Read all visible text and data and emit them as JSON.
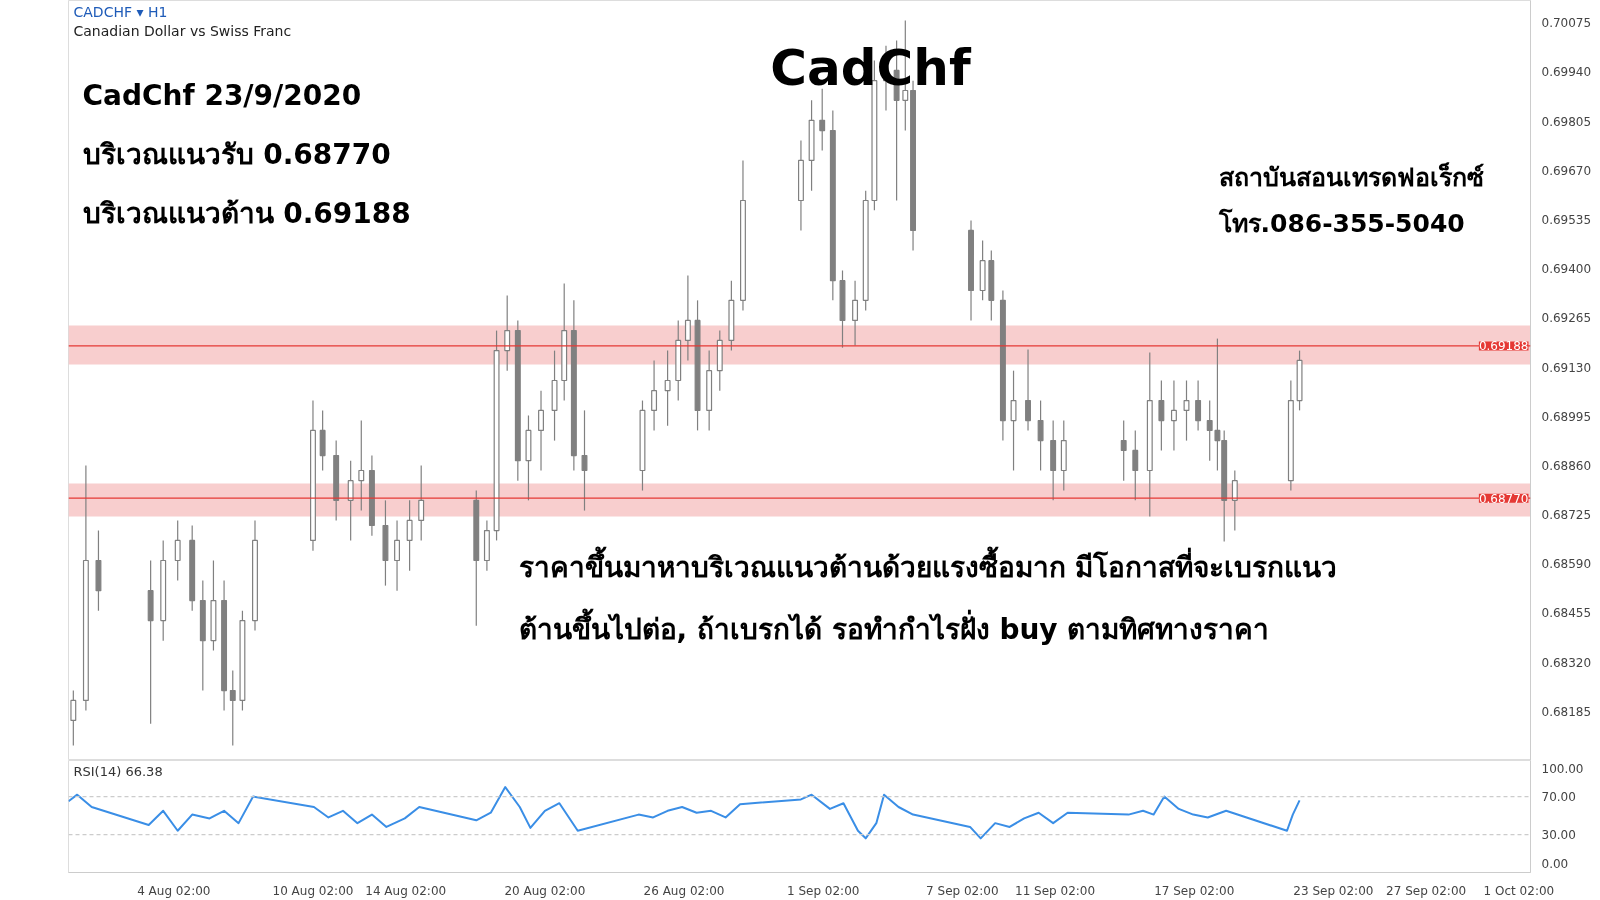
{
  "chart_data": [
    {
      "type": "candlestick",
      "title": "CadChf",
      "color": "#808080",
      "tick_labels": "y",
      "annotations": [
        "CADCHF ▾ H1",
        "Canadian Dollar vs Swiss Franc",
        "CadChf 23/9/2020",
        "บริเวณแนวรับ 0.68770",
        "บริเวณแนวต้าน 0.69188",
        "สถาบันสอนเทรดฟอเร็กซ์",
        "โทร.086-355-5040",
        "ราคาขึ้นมาหาบริเวณแนวต้านด้วยแรงซื้อมาก มีโอกาสที่จะเบรกแนว",
        "ต้านขึ้นไปต่อ, ถ้าเบรกได้ รอทำกำไรฝั่ง buy ตามทิศทางราคา"
      ],
      "x": [
        "2020-07-30T18:00",
        "2020-07-31T07:00",
        "2020-07-31T20:00",
        "2020-08-03T02:00",
        "2020-08-03T15:00",
        "2020-08-04T06:00",
        "2020-08-04T21:00",
        "2020-08-05T08:00",
        "2020-08-05T19:00",
        "2020-08-06T06:00",
        "2020-08-06T15:00",
        "2020-08-07T01:00",
        "2020-08-07T14:00",
        "2020-08-10T02:00",
        "2020-08-10T12:00",
        "2020-08-11T02:00",
        "2020-08-11T17:00",
        "2020-08-12T04:00",
        "2020-08-12T15:00",
        "2020-08-13T05:00",
        "2020-08-13T17:00",
        "2020-08-14T06:00",
        "2020-08-14T18:00",
        "2020-08-17T03:00",
        "2020-08-17T14:00",
        "2020-08-18T00:00",
        "2020-08-18T11:00",
        "2020-08-18T22:00",
        "2020-08-19T09:00",
        "2020-08-19T22:00",
        "2020-08-20T12:00",
        "2020-08-20T22:00",
        "2020-08-21T08:00",
        "2020-08-21T19:00",
        "2020-08-24T07:00",
        "2020-08-24T19:00",
        "2020-08-25T09:00",
        "2020-08-25T20:00",
        "2020-08-26T06:00",
        "2020-08-26T16:00",
        "2020-08-27T04:00",
        "2020-08-27T15:00",
        "2020-08-28T03:00",
        "2020-08-28T15:00",
        "2020-08-31T03:00",
        "2020-08-31T14:00",
        "2020-09-01T01:00",
        "2020-09-01T12:00",
        "2020-09-01T22:00",
        "2020-09-02T11:00",
        "2020-09-02T22:00",
        "2020-09-03T07:00",
        "2020-09-03T19:00",
        "2020-09-04T06:00",
        "2020-09-04T15:00",
        "2020-09-04T23:00",
        "2020-09-07T11:00",
        "2020-09-07T23:00",
        "2020-09-08T08:00",
        "2020-09-08T20:00",
        "2020-09-09T07:00",
        "2020-09-09T22:00",
        "2020-09-10T11:00",
        "2020-09-11T00:00",
        "2020-09-11T11:00",
        "2020-09-14T01:00",
        "2020-09-14T13:00",
        "2020-09-15T04:00",
        "2020-09-15T16:00",
        "2020-09-16T05:00",
        "2020-09-16T18:00",
        "2020-09-17T06:00",
        "2020-09-17T18:00",
        "2020-09-18T02:00",
        "2020-09-18T09:00",
        "2020-09-18T20:00",
        "2020-09-21T06:00",
        "2020-09-21T15:00"
      ],
      "ohlc": [
        [
          0.6816,
          0.68242,
          0.68091,
          0.68215
        ],
        [
          0.68215,
          0.6886,
          0.68187,
          0.68599
        ],
        [
          0.68599,
          0.68681,
          0.68461,
          0.68516
        ],
        [
          0.68516,
          0.68599,
          0.68151,
          0.68434
        ],
        [
          0.68434,
          0.68654,
          0.68379,
          0.68599
        ],
        [
          0.68599,
          0.68709,
          0.68544,
          0.68654
        ],
        [
          0.68654,
          0.68695,
          0.68461,
          0.68489
        ],
        [
          0.68489,
          0.68544,
          0.68242,
          0.68379
        ],
        [
          0.68379,
          0.68599,
          0.68352,
          0.68489
        ],
        [
          0.68489,
          0.68544,
          0.68187,
          0.68242
        ],
        [
          0.68242,
          0.68297,
          0.68091,
          0.68215
        ],
        [
          0.68215,
          0.68461,
          0.68187,
          0.68434
        ],
        [
          0.68434,
          0.68709,
          0.68407,
          0.68654
        ],
        [
          0.68654,
          0.69038,
          0.68626,
          0.68956
        ],
        [
          0.68956,
          0.69011,
          0.68846,
          0.68887
        ],
        [
          0.68887,
          0.68928,
          0.68709,
          0.68764
        ],
        [
          0.68764,
          0.68873,
          0.68654,
          0.68818
        ],
        [
          0.68818,
          0.68983,
          0.68736,
          0.68846
        ],
        [
          0.68846,
          0.68887,
          0.68667,
          0.68695
        ],
        [
          0.68695,
          0.68764,
          0.6853,
          0.68599
        ],
        [
          0.68599,
          0.68709,
          0.68516,
          0.68654
        ],
        [
          0.68654,
          0.68764,
          0.68571,
          0.68709
        ],
        [
          0.68709,
          0.6886,
          0.68654,
          0.68764
        ],
        [
          0.68764,
          0.68791,
          0.6842,
          0.68599
        ],
        [
          0.68599,
          0.68709,
          0.68571,
          0.68681
        ],
        [
          0.68681,
          0.6923,
          0.68654,
          0.69175
        ],
        [
          0.69175,
          0.69326,
          0.6912,
          0.6923
        ],
        [
          0.6923,
          0.69258,
          0.68818,
          0.68873
        ],
        [
          0.68873,
          0.68997,
          0.68764,
          0.68956
        ],
        [
          0.68956,
          0.69065,
          0.68846,
          0.69011
        ],
        [
          0.69011,
          0.69175,
          0.68928,
          0.69093
        ],
        [
          0.69093,
          0.69359,
          0.69038,
          0.6923
        ],
        [
          0.6923,
          0.69313,
          0.68846,
          0.68887
        ],
        [
          0.68887,
          0.69011,
          0.68736,
          0.68846
        ],
        [
          0.68846,
          0.69038,
          0.68791,
          0.69011
        ],
        [
          0.69011,
          0.69148,
          0.68956,
          0.69065
        ],
        [
          0.69065,
          0.69175,
          0.68969,
          0.69093
        ],
        [
          0.69093,
          0.69258,
          0.69038,
          0.69203
        ],
        [
          0.69203,
          0.69381,
          0.69148,
          0.69258
        ],
        [
          0.69258,
          0.69313,
          0.68956,
          0.69011
        ],
        [
          0.69011,
          0.69175,
          0.68956,
          0.6912
        ],
        [
          0.6912,
          0.6923,
          0.69065,
          0.69203
        ],
        [
          0.69203,
          0.69367,
          0.69175,
          0.69313
        ],
        [
          0.69313,
          0.69697,
          0.69285,
          0.69587
        ],
        [
          0.69587,
          0.69752,
          0.69505,
          0.69697
        ],
        [
          0.69697,
          0.69862,
          0.69614,
          0.69807
        ],
        [
          0.69807,
          0.69894,
          0.69724,
          0.69779
        ],
        [
          0.69779,
          0.69834,
          0.69313,
          0.69367
        ],
        [
          0.69367,
          0.69395,
          0.69183,
          0.69258
        ],
        [
          0.69258,
          0.69367,
          0.69189,
          0.69313
        ],
        [
          0.69313,
          0.69614,
          0.69285,
          0.69587
        ],
        [
          0.69587,
          0.69971,
          0.6956,
          0.69916
        ],
        [
          0.69916,
          0.70012,
          0.69834,
          0.69944
        ],
        [
          0.69944,
          0.70026,
          0.69587,
          0.69862
        ],
        [
          0.69862,
          0.70081,
          0.69779,
          0.69889
        ],
        [
          0.69889,
          0.69916,
          0.6945,
          0.69505
        ],
        [
          0.69505,
          0.69532,
          0.69258,
          0.6934
        ],
        [
          0.6934,
          0.69477,
          0.69313,
          0.69422
        ],
        [
          0.69422,
          0.6945,
          0.69258,
          0.69313
        ],
        [
          0.69313,
          0.6934,
          0.68928,
          0.68983
        ],
        [
          0.68983,
          0.6912,
          0.68846,
          0.69038
        ],
        [
          0.69038,
          0.69178,
          0.68956,
          0.68983
        ],
        [
          0.68983,
          0.69038,
          0.68846,
          0.68928
        ],
        [
          0.68928,
          0.68983,
          0.68764,
          0.68846
        ],
        [
          0.68846,
          0.68983,
          0.68791,
          0.68928
        ],
        [
          0.68928,
          0.68983,
          0.68818,
          0.68901
        ],
        [
          0.68901,
          0.68956,
          0.68764,
          0.68846
        ],
        [
          0.68846,
          0.6917,
          0.6872,
          0.69038
        ],
        [
          0.69038,
          0.69093,
          0.68901,
          0.68983
        ],
        [
          0.68983,
          0.69093,
          0.68901,
          0.69011
        ],
        [
          0.69011,
          0.69093,
          0.68928,
          0.69038
        ],
        [
          0.69038,
          0.69093,
          0.68956,
          0.68983
        ],
        [
          0.68983,
          0.69038,
          0.68873,
          0.68956
        ],
        [
          0.68956,
          0.69208,
          0.68846,
          0.68928
        ],
        [
          0.68928,
          0.68956,
          0.68651,
          0.68764
        ],
        [
          0.68764,
          0.68846,
          0.68681,
          0.68818
        ],
        [
          0.68818,
          0.69093,
          0.68791,
          0.69038
        ],
        [
          0.69038,
          0.69175,
          0.69011,
          0.69148
        ]
      ],
      "xlim": [
        "2020-07-30T13:00",
        "2020-10-01T14:00"
      ],
      "ylim": [
        0.6805,
        0.70136
      ],
      "yticks": [
        {
          "value": 0.68185,
          "label": "0.68185"
        },
        {
          "value": 0.6832,
          "label": "0.68320"
        },
        {
          "value": 0.68455,
          "label": "0.68455"
        },
        {
          "value": 0.6859,
          "label": "0.68590"
        },
        {
          "value": 0.68725,
          "label": "0.68725"
        },
        {
          "value": 0.6886,
          "label": "0.68860"
        },
        {
          "value": 0.68995,
          "label": "0.68995"
        },
        {
          "value": 0.6913,
          "label": "0.69130"
        },
        {
          "value": 0.69265,
          "label": "0.69265"
        },
        {
          "value": 0.694,
          "label": "0.69400"
        },
        {
          "value": 0.69535,
          "label": "0.69535"
        },
        {
          "value": 0.6967,
          "label": "0.69670"
        },
        {
          "value": 0.69805,
          "label": "0.69805"
        },
        {
          "value": 0.6994,
          "label": "0.69940"
        },
        {
          "value": 0.70075,
          "label": "0.70075"
        }
      ],
      "bands": [
        {
          "axis": "y",
          "from": 0.69137,
          "to": 0.69244,
          "color": "#f7c5c5"
        },
        {
          "axis": "y",
          "from": 0.6872,
          "to": 0.6881,
          "color": "#f7c5c5"
        }
      ],
      "ref_lines": [
        {
          "axis": "y",
          "value": 0.69188,
          "label": "0.69188",
          "color": "#e53935",
          "line_style": "solid"
        },
        {
          "axis": "y",
          "value": 0.6877,
          "label": "0.68770",
          "color": "#e53935",
          "line_style": "solid"
        }
      ]
    },
    {
      "type": "line",
      "title": "RSI(14) 66.38",
      "color": "#3a8ee6",
      "x": [
        "2020-07-30T13:00",
        "2020-07-30T22:00",
        "2020-07-31T13:00",
        "2020-08-03T00:00",
        "2020-08-03T15:00",
        "2020-08-04T06:00",
        "2020-08-04T21:00",
        "2020-08-05T15:00",
        "2020-08-06T06:00",
        "2020-08-06T21:00",
        "2020-08-07T12:00",
        "2020-08-10T03:00",
        "2020-08-10T18:00",
        "2020-08-11T09:00",
        "2020-08-12T00:00",
        "2020-08-12T15:00",
        "2020-08-13T06:00",
        "2020-08-14T01:00",
        "2020-08-14T16:00",
        "2020-08-17T03:00",
        "2020-08-17T18:00",
        "2020-08-18T09:00",
        "2020-08-19T00:00",
        "2020-08-19T11:00",
        "2020-08-20T02:00",
        "2020-08-20T17:00",
        "2020-08-21T12:00",
        "2020-08-24T03:00",
        "2020-08-24T18:00",
        "2020-08-25T09:00",
        "2020-08-26T00:00",
        "2020-08-26T15:00",
        "2020-08-27T06:00",
        "2020-08-27T21:00",
        "2020-08-28T12:00",
        "2020-08-31T03:00",
        "2020-08-31T14:00",
        "2020-09-01T09:00",
        "2020-09-01T23:00",
        "2020-09-02T14:00",
        "2020-09-02T22:00",
        "2020-09-03T09:00",
        "2020-09-03T17:00",
        "2020-09-04T08:00",
        "2020-09-04T23:00",
        "2020-09-07T10:00",
        "2020-09-07T21:00",
        "2020-09-08T12:00",
        "2020-09-09T03:00",
        "2020-09-09T18:00",
        "2020-09-10T09:00",
        "2020-09-11T00:00",
        "2020-09-11T15:00",
        "2020-09-14T06:00",
        "2020-09-14T21:00",
        "2020-09-15T08:00",
        "2020-09-15T19:00",
        "2020-09-16T10:00",
        "2020-09-17T01:00",
        "2020-09-17T16:00",
        "2020-09-18T11:00",
        "2020-09-21T02:00",
        "2020-09-21T08:00",
        "2020-09-21T15:00"
      ],
      "values": [
        65,
        72,
        59,
        40,
        55,
        34,
        51,
        47,
        55,
        42,
        70,
        59,
        48,
        55,
        42,
        51,
        38,
        47,
        59,
        45,
        53,
        80,
        59,
        37,
        55,
        63,
        34,
        51,
        48,
        55,
        59,
        53,
        55,
        48,
        62,
        67,
        72,
        57,
        63,
        34,
        26,
        42,
        72,
        59,
        51,
        38,
        26,
        42,
        38,
        47,
        53,
        42,
        53,
        51,
        55,
        51,
        70,
        57,
        51,
        48,
        55,
        34,
        51,
        66
      ],
      "xlim": [
        "2020-07-30T13:00",
        "2020-10-01T14:00"
      ],
      "xticks": [
        {
          "value": "2020-08-04T02:00",
          "label": "4 Aug 02:00"
        },
        {
          "value": "2020-08-10T02:00",
          "label": "10 Aug 02:00"
        },
        {
          "value": "2020-08-14T02:00",
          "label": "14 Aug 02:00"
        },
        {
          "value": "2020-08-20T02:00",
          "label": "20 Aug 02:00"
        },
        {
          "value": "2020-08-26T02:00",
          "label": "26 Aug 02:00"
        },
        {
          "value": "2020-09-01T02:00",
          "label": "1 Sep 02:00"
        },
        {
          "value": "2020-09-07T02:00",
          "label": "7 Sep 02:00"
        },
        {
          "value": "2020-09-11T02:00",
          "label": "11 Sep 02:00"
        },
        {
          "value": "2020-09-17T02:00",
          "label": "17 Sep 02:00"
        },
        {
          "value": "2020-09-23T02:00",
          "label": "23 Sep 02:00"
        },
        {
          "value": "2020-09-27T02:00",
          "label": "27 Sep 02:00"
        },
        {
          "value": "2020-10-01T02:00",
          "label": "1 Oct 02:00"
        }
      ],
      "ylim": [
        -10,
        108
      ],
      "yticks": [
        {
          "value": 0,
          "label": "0.00"
        },
        {
          "value": 30,
          "label": "30.00"
        },
        {
          "value": 70,
          "label": "70.00"
        },
        {
          "value": 100,
          "label": "100.00"
        }
      ],
      "ref_lines": [
        {
          "axis": "y",
          "value": 30,
          "color": "#cccccc",
          "line_style": "dashed"
        },
        {
          "axis": "y",
          "value": 70,
          "color": "#cccccc",
          "line_style": "dashed"
        }
      ]
    }
  ]
}
